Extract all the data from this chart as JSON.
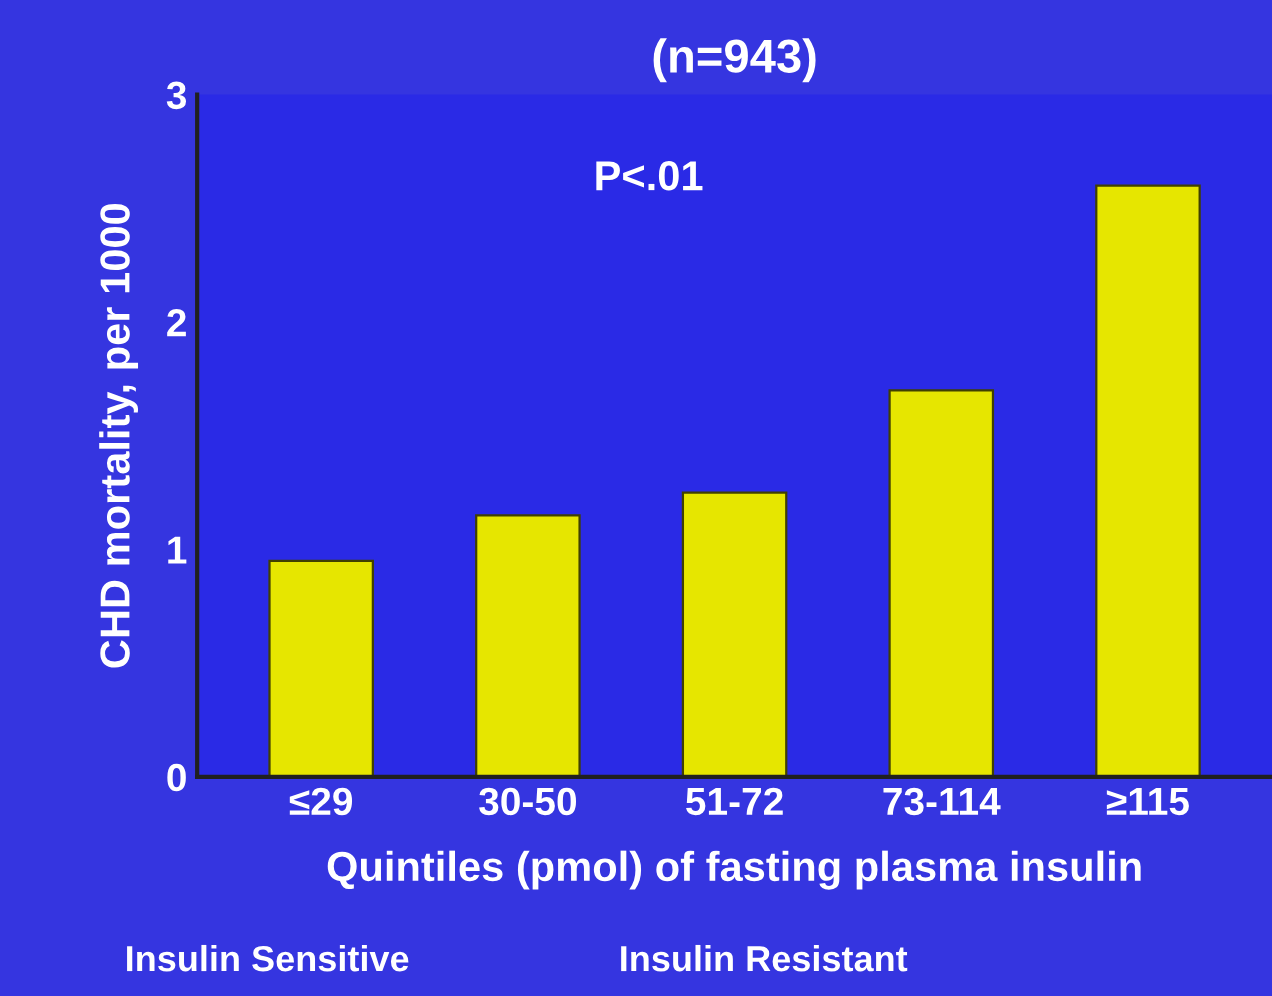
{
  "chart_data": {
    "type": "bar",
    "title": "(n=943)",
    "categories": [
      "≤29",
      "30-50",
      "51-72",
      "73-114",
      "≥115"
    ],
    "values": [
      0.95,
      1.15,
      1.25,
      1.7,
      2.6
    ],
    "color": "#e6e600",
    "xlabel": "Quintiles (pmol) of fasting plasma insulin",
    "ylabel": "CHD mortality, per 1000",
    "ylim": [
      0,
      3
    ],
    "yticks": [
      0,
      1,
      2,
      3
    ],
    "grid": false,
    "annotations": [
      "P<.01",
      "Insulin Sensitive",
      "Insulin Resistant"
    ]
  }
}
